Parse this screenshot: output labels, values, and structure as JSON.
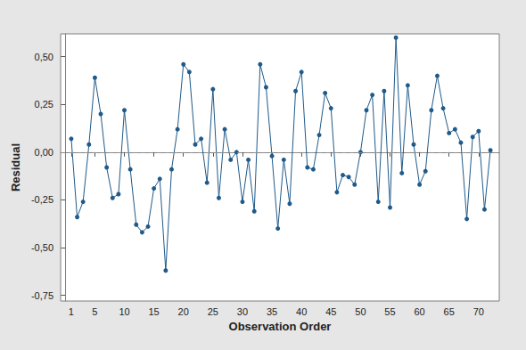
{
  "chart_data": {
    "type": "line",
    "x_label": "Observation Order",
    "y_label": "Residual",
    "x": [
      1,
      2,
      3,
      4,
      5,
      6,
      7,
      8,
      9,
      10,
      11,
      12,
      13,
      14,
      15,
      16,
      17,
      18,
      19,
      20,
      21,
      22,
      23,
      24,
      25,
      26,
      27,
      28,
      29,
      30,
      31,
      32,
      33,
      34,
      35,
      36,
      37,
      38,
      39,
      40,
      41,
      42,
      43,
      44,
      45,
      46,
      47,
      48,
      49,
      50,
      51,
      52,
      53,
      54,
      55,
      56,
      57,
      58,
      59,
      60,
      61,
      62,
      63,
      64,
      65,
      66,
      67,
      68,
      69,
      70,
      71,
      72
    ],
    "values": [
      0.07,
      -0.34,
      -0.26,
      0.04,
      0.39,
      0.2,
      -0.08,
      -0.24,
      -0.22,
      0.22,
      -0.09,
      -0.38,
      -0.42,
      -0.39,
      -0.19,
      -0.14,
      -0.62,
      -0.09,
      0.12,
      0.46,
      0.42,
      0.04,
      0.07,
      -0.16,
      0.33,
      -0.24,
      0.12,
      -0.04,
      0.0,
      -0.26,
      -0.04,
      -0.31,
      0.46,
      0.34,
      -0.02,
      -0.4,
      -0.04,
      -0.27,
      0.32,
      0.42,
      -0.08,
      -0.09,
      0.09,
      0.31,
      0.23,
      -0.21,
      -0.12,
      -0.13,
      -0.17,
      0.0,
      0.22,
      0.3,
      -0.26,
      0.32,
      -0.29,
      0.6,
      -0.11,
      0.35,
      0.04,
      -0.17,
      -0.1,
      0.22,
      0.4,
      0.23,
      0.1,
      0.12,
      0.05,
      -0.35,
      0.08,
      0.11,
      -0.3,
      0.01
    ],
    "color": "#1f5a8a",
    "marker": "circle",
    "line_style": "solid",
    "reference_line": 0,
    "xlim": [
      -0.8,
      73.5
    ],
    "xticks": [
      1,
      5,
      10,
      15,
      20,
      25,
      30,
      35,
      40,
      45,
      50,
      55,
      60,
      65,
      70
    ],
    "ylim": [
      -0.78,
      0.62
    ],
    "yticks": [
      {
        "value": -0.75,
        "label": "-0,75"
      },
      {
        "value": -0.5,
        "label": "-0,50"
      },
      {
        "value": -0.25,
        "label": "-0,25"
      },
      {
        "value": 0,
        "label": "0,00"
      },
      {
        "value": 0.25,
        "label": "0,25"
      },
      {
        "value": 0.5,
        "label": "0,50"
      }
    ],
    "grid": false
  }
}
